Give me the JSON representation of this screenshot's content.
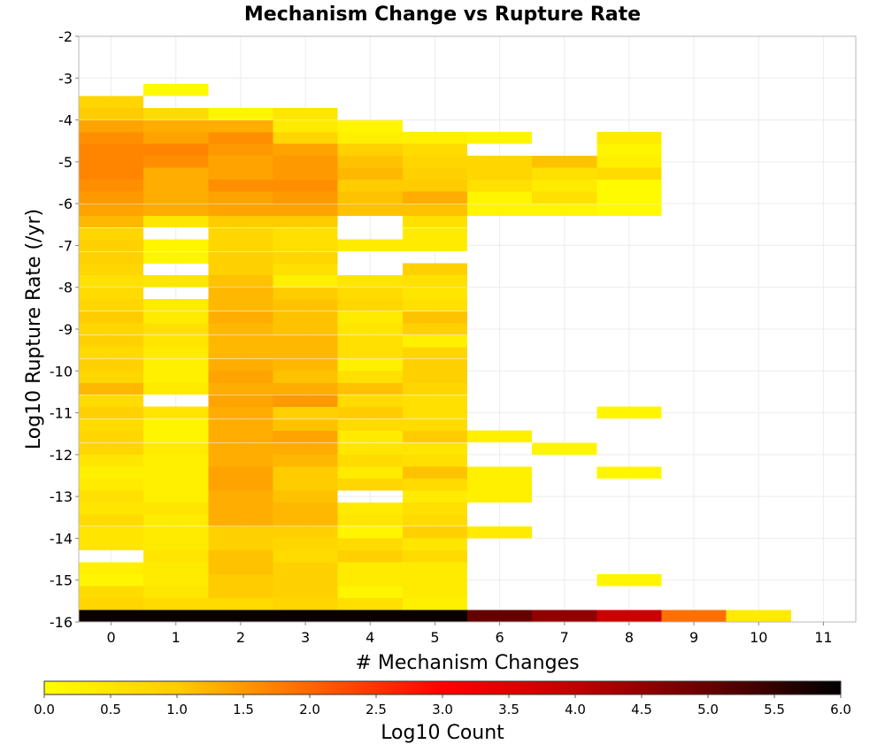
{
  "chart_data": {
    "type": "heatmap",
    "title": "Mechanism Change vs Rupture Rate",
    "xlabel": "# Mechanism Changes",
    "ylabel": "Log10 Rupture Rate (/yr)",
    "x_ticks": [
      "0",
      "1",
      "2",
      "3",
      "4",
      "5",
      "6",
      "7",
      "8",
      "9",
      "10",
      "11"
    ],
    "y_ticks": [
      "-2",
      "-3",
      "-4",
      "-5",
      "-6",
      "-7",
      "-8",
      "-9",
      "-10",
      "-11",
      "-12",
      "-13",
      "-14",
      "-15",
      "-16"
    ],
    "xlim": [
      -0.5,
      11.5
    ],
    "ylim": [
      -16,
      -2
    ],
    "x_bin_width": 1,
    "y_bin_width": 0.2857,
    "colorbar": {
      "label": "Log10 Count",
      "range": [
        0.0,
        6.0
      ],
      "ticks": [
        "0.0",
        "0.5",
        "1.0",
        "1.5",
        "2.0",
        "2.5",
        "3.0",
        "3.5",
        "4.0",
        "4.5",
        "5.0",
        "5.5",
        "6.0"
      ],
      "stops": [
        {
          "v": 0.0,
          "color": "#ffff00"
        },
        {
          "v": 1.0,
          "color": "#ffcc00"
        },
        {
          "v": 2.0,
          "color": "#ff6600"
        },
        {
          "v": 3.0,
          "color": "#ff0000"
        },
        {
          "v": 4.0,
          "color": "#c00000"
        },
        {
          "v": 5.0,
          "color": "#660000"
        },
        {
          "v": 6.0,
          "color": "#000000"
        }
      ]
    },
    "columns": [
      {
        "x": 0,
        "cells": [
          [
            -16,
            5.9
          ],
          [
            -15.71,
            0.8
          ],
          [
            -15.43,
            0.7
          ],
          [
            -15.14,
            0.2
          ],
          [
            -14.86,
            0.3
          ],
          [
            -14.29,
            0.5
          ],
          [
            -14,
            0.5
          ],
          [
            -13.71,
            0.7
          ],
          [
            -13.43,
            0.5
          ],
          [
            -13.14,
            0.6
          ],
          [
            -12.86,
            0.4
          ],
          [
            -12.57,
            0.3
          ],
          [
            -12.29,
            0.5
          ],
          [
            -12,
            0.8
          ],
          [
            -11.71,
            0.8
          ],
          [
            -11.43,
            0.7
          ],
          [
            -11.14,
            0.9
          ],
          [
            -10.86,
            0.7
          ],
          [
            -10.57,
            1.2
          ],
          [
            -10.29,
            0.8
          ],
          [
            -10,
            0.9
          ],
          [
            -9.71,
            0.7
          ],
          [
            -9.43,
            0.9
          ],
          [
            -9.14,
            0.8
          ],
          [
            -8.86,
            1.0
          ],
          [
            -8.57,
            0.8
          ],
          [
            -8.29,
            0.7
          ],
          [
            -8,
            0.6
          ],
          [
            -7.71,
            0.8
          ],
          [
            -7.43,
            0.9
          ],
          [
            -7.14,
            0.9
          ],
          [
            -6.86,
            0.8
          ],
          [
            -6.57,
            1.2
          ],
          [
            -6.29,
            1.4
          ],
          [
            -6,
            1.5
          ],
          [
            -5.71,
            1.6
          ],
          [
            -5.43,
            1.7
          ],
          [
            -5.14,
            1.7
          ],
          [
            -4.86,
            1.7
          ],
          [
            -4.57,
            1.6
          ],
          [
            -4.29,
            1.4
          ],
          [
            -4,
            1.0
          ],
          [
            -3.71,
            0.8
          ]
        ]
      },
      {
        "x": 1,
        "cells": [
          [
            -16,
            5.9
          ],
          [
            -15.71,
            0.7
          ],
          [
            -15.43,
            0.5
          ],
          [
            -15.14,
            0.4
          ],
          [
            -14.86,
            0.4
          ],
          [
            -14.57,
            0.5
          ],
          [
            -14.29,
            0.4
          ],
          [
            -14,
            0.4
          ],
          [
            -13.71,
            0.4
          ],
          [
            -13.43,
            0.5
          ],
          [
            -13.14,
            0.3
          ],
          [
            -12.86,
            0.3
          ],
          [
            -12.57,
            0.3
          ],
          [
            -12.29,
            0.3
          ],
          [
            -12,
            0.4
          ],
          [
            -11.71,
            0.2
          ],
          [
            -11.43,
            0.2
          ],
          [
            -11.14,
            0.5
          ],
          [
            -10.57,
            0.4
          ],
          [
            -10.29,
            0.3
          ],
          [
            -10,
            0.3
          ],
          [
            -9.71,
            0.4
          ],
          [
            -9.43,
            0.5
          ],
          [
            -9.14,
            0.6
          ],
          [
            -8.86,
            0.4
          ],
          [
            -8.57,
            0.4
          ],
          [
            -8,
            0.5
          ],
          [
            -7.43,
            0.2
          ],
          [
            -7.14,
            0.2
          ],
          [
            -6.57,
            0.5
          ],
          [
            -6.29,
            1.3
          ],
          [
            -6,
            1.3
          ],
          [
            -5.71,
            1.3
          ],
          [
            -5.43,
            1.3
          ],
          [
            -5.14,
            1.6
          ],
          [
            -4.86,
            1.7
          ],
          [
            -4.57,
            1.4
          ],
          [
            -4.29,
            1.3
          ],
          [
            -4,
            0.7
          ],
          [
            -3.43,
            0.1
          ]
        ]
      },
      {
        "x": 2,
        "cells": [
          [
            -16,
            5.9
          ],
          [
            -15.71,
            0.7
          ],
          [
            -15.43,
            1.0
          ],
          [
            -15.14,
            1.0
          ],
          [
            -14.86,
            1.1
          ],
          [
            -14.57,
            1.1
          ],
          [
            -14.29,
            0.9
          ],
          [
            -14,
            0.9
          ],
          [
            -13.71,
            1.3
          ],
          [
            -13.43,
            1.3
          ],
          [
            -13.14,
            1.3
          ],
          [
            -12.86,
            1.4
          ],
          [
            -12.57,
            1.4
          ],
          [
            -12.29,
            1.3
          ],
          [
            -12,
            1.3
          ],
          [
            -11.71,
            1.3
          ],
          [
            -11.43,
            1.3
          ],
          [
            -11.14,
            1.3
          ],
          [
            -10.86,
            1.4
          ],
          [
            -10.57,
            1.3
          ],
          [
            -10.29,
            1.4
          ],
          [
            -10,
            1.3
          ],
          [
            -9.71,
            1.2
          ],
          [
            -9.43,
            1.2
          ],
          [
            -9.14,
            1.2
          ],
          [
            -8.86,
            1.3
          ],
          [
            -8.57,
            1.2
          ],
          [
            -8.29,
            1.2
          ],
          [
            -8,
            1.1
          ],
          [
            -7.71,
            0.9
          ],
          [
            -7.43,
            0.9
          ],
          [
            -7.14,
            0.8
          ],
          [
            -6.86,
            0.8
          ],
          [
            -6.57,
            1.0
          ],
          [
            -6.29,
            1.4
          ],
          [
            -6,
            1.4
          ],
          [
            -5.71,
            1.6
          ],
          [
            -5.43,
            1.4
          ],
          [
            -5.14,
            1.4
          ],
          [
            -4.86,
            1.5
          ],
          [
            -4.57,
            1.6
          ],
          [
            -4.29,
            1.3
          ],
          [
            -4,
            0.2
          ]
        ]
      },
      {
        "x": 3,
        "cells": [
          [
            -16,
            5.9
          ],
          [
            -15.71,
            0.8
          ],
          [
            -15.43,
            0.9
          ],
          [
            -15.14,
            0.9
          ],
          [
            -14.86,
            0.9
          ],
          [
            -14.57,
            0.7
          ],
          [
            -14.29,
            0.8
          ],
          [
            -14,
            0.9
          ],
          [
            -13.71,
            1.2
          ],
          [
            -13.43,
            1.2
          ],
          [
            -13.14,
            1.1
          ],
          [
            -12.86,
            1.0
          ],
          [
            -12.57,
            1.0
          ],
          [
            -12.29,
            1.2
          ],
          [
            -12,
            1.3
          ],
          [
            -11.71,
            1.4
          ],
          [
            -11.43,
            1.1
          ],
          [
            -11.14,
            0.9
          ],
          [
            -10.86,
            1.5
          ],
          [
            -10.57,
            1.3
          ],
          [
            -10.29,
            1.1
          ],
          [
            -10,
            1.2
          ],
          [
            -9.71,
            1.2
          ],
          [
            -9.43,
            1.2
          ],
          [
            -9.14,
            1.1
          ],
          [
            -8.86,
            1.1
          ],
          [
            -8.57,
            1.1
          ],
          [
            -8.29,
            1.0
          ],
          [
            -8,
            0.3
          ],
          [
            -7.71,
            0.6
          ],
          [
            -7.43,
            0.8
          ],
          [
            -7.14,
            0.6
          ],
          [
            -6.86,
            0.6
          ],
          [
            -6.57,
            1.0
          ],
          [
            -6.29,
            1.4
          ],
          [
            -6,
            1.5
          ],
          [
            -5.71,
            1.6
          ],
          [
            -5.43,
            1.5
          ],
          [
            -5.14,
            1.5
          ],
          [
            -4.86,
            1.4
          ],
          [
            -4.57,
            0.8
          ],
          [
            -4.29,
            0.4
          ],
          [
            -4,
            0.5
          ]
        ]
      },
      {
        "x": 4,
        "cells": [
          [
            -16,
            5.9
          ],
          [
            -15.71,
            0.6
          ],
          [
            -15.43,
            0.2
          ],
          [
            -15.14,
            0.4
          ],
          [
            -14.86,
            0.4
          ],
          [
            -14.57,
            0.9
          ],
          [
            -14.29,
            0.7
          ],
          [
            -14,
            0.2
          ],
          [
            -13.71,
            0.5
          ],
          [
            -13.43,
            0.4
          ],
          [
            -12.86,
            0.8
          ],
          [
            -12.57,
            0.4
          ],
          [
            -12.29,
            0.7
          ],
          [
            -12,
            0.5
          ],
          [
            -11.71,
            0.4
          ],
          [
            -11.43,
            0.7
          ],
          [
            -11.14,
            1.0
          ],
          [
            -10.86,
            0.7
          ],
          [
            -10.57,
            1.1
          ],
          [
            -10.29,
            0.6
          ],
          [
            -10,
            0.3
          ],
          [
            -9.71,
            0.6
          ],
          [
            -9.43,
            0.6
          ],
          [
            -9.14,
            0.5
          ],
          [
            -8.86,
            0.4
          ],
          [
            -8.57,
            0.8
          ],
          [
            -8.29,
            0.7
          ],
          [
            -8,
            0.5
          ],
          [
            -7.14,
            0.4
          ],
          [
            -6.29,
            1.1
          ],
          [
            -6,
            1.1
          ],
          [
            -5.71,
            1.0
          ],
          [
            -5.43,
            1.2
          ],
          [
            -5.14,
            1.1
          ],
          [
            -4.86,
            0.9
          ],
          [
            -4.57,
            0.3
          ],
          [
            -4.29,
            0.2
          ]
        ]
      },
      {
        "x": 5,
        "cells": [
          [
            -16,
            5.9
          ],
          [
            -15.71,
            0.3
          ],
          [
            -15.43,
            0.4
          ],
          [
            -15.14,
            0.4
          ],
          [
            -14.86,
            0.4
          ],
          [
            -14.57,
            0.7
          ],
          [
            -14.29,
            0.5
          ],
          [
            -14,
            0.9
          ],
          [
            -13.71,
            0.7
          ],
          [
            -13.43,
            0.6
          ],
          [
            -13.14,
            0.4
          ],
          [
            -12.86,
            0.7
          ],
          [
            -12.57,
            1.1
          ],
          [
            -12.29,
            0.6
          ],
          [
            -12,
            0.5
          ],
          [
            -11.71,
            1.0
          ],
          [
            -11.43,
            0.7
          ],
          [
            -11.14,
            0.6
          ],
          [
            -10.86,
            0.6
          ],
          [
            -10.57,
            0.8
          ],
          [
            -10.29,
            0.9
          ],
          [
            -10,
            0.9
          ],
          [
            -9.71,
            0.8
          ],
          [
            -9.43,
            0.3
          ],
          [
            -9.14,
            0.9
          ],
          [
            -8.86,
            1.1
          ],
          [
            -8.57,
            0.6
          ],
          [
            -8.29,
            0.5
          ],
          [
            -8,
            0.6
          ],
          [
            -7.71,
            0.9
          ],
          [
            -7.14,
            0.4
          ],
          [
            -6.86,
            0.4
          ],
          [
            -6.57,
            0.6
          ],
          [
            -6.29,
            1.1
          ],
          [
            -6,
            1.3
          ],
          [
            -5.71,
            1.0
          ],
          [
            -5.43,
            0.9
          ],
          [
            -5.14,
            0.8
          ],
          [
            -4.86,
            0.7
          ],
          [
            -4.57,
            0.3
          ]
        ]
      },
      {
        "x": 6,
        "cells": [
          [
            -16,
            5.0
          ],
          [
            -14,
            0.4
          ],
          [
            -13.14,
            0.3
          ],
          [
            -12.86,
            0.3
          ],
          [
            -12.57,
            0.3
          ],
          [
            -11.71,
            0.3
          ],
          [
            -6.29,
            0.2
          ],
          [
            -6,
            0.2
          ],
          [
            -5.71,
            0.6
          ],
          [
            -5.43,
            0.8
          ],
          [
            -5.14,
            0.8
          ],
          [
            -4.57,
            0.2
          ]
        ]
      },
      {
        "x": 7,
        "cells": [
          [
            -16,
            4.5
          ],
          [
            -12,
            0.2
          ],
          [
            -6.29,
            0.2
          ],
          [
            -6,
            0.6
          ],
          [
            -5.71,
            0.4
          ],
          [
            -5.43,
            0.6
          ],
          [
            -5.14,
            1.1
          ]
        ]
      },
      {
        "x": 8,
        "cells": [
          [
            -16,
            3.8
          ],
          [
            -15.14,
            0.2
          ],
          [
            -12.57,
            0.2
          ],
          [
            -11.14,
            0.2
          ],
          [
            -6.29,
            0.1
          ],
          [
            -6,
            0.1
          ],
          [
            -5.71,
            0.1
          ],
          [
            -5.43,
            0.7
          ],
          [
            -5.14,
            0.3
          ],
          [
            -4.86,
            0.2
          ],
          [
            -4.57,
            0.4
          ]
        ]
      },
      {
        "x": 9,
        "cells": [
          [
            -16,
            1.9
          ]
        ]
      },
      {
        "x": 10,
        "cells": [
          [
            -16,
            0.4
          ]
        ]
      }
    ]
  }
}
